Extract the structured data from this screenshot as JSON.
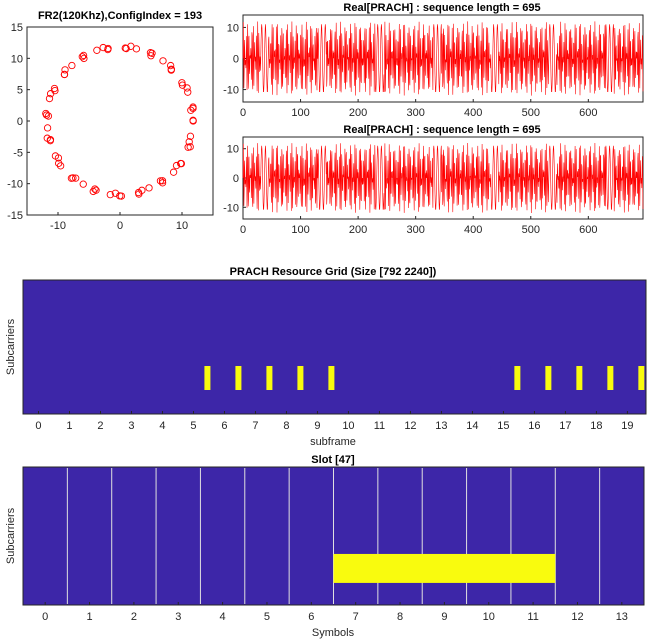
{
  "chart_data": [
    {
      "id": "constellation",
      "type": "scatter",
      "title": "FR2(120Khz),ConfigIndex = 193",
      "xlim": [
        -15,
        15
      ],
      "ylim": [
        -15,
        15
      ],
      "xticks": [
        -10,
        0,
        10
      ],
      "yticks": [
        15,
        10,
        5,
        0,
        -5,
        -10,
        -15
      ],
      "marker": "circle-open",
      "color": "#ff0000",
      "radius_estimate": 11.8,
      "point_count": 72
    },
    {
      "id": "real-prach-1",
      "type": "line",
      "title": "Real[PRACH] : sequence length = 695",
      "xlim": [
        0,
        695
      ],
      "ylim": [
        -14,
        14
      ],
      "xticks": [
        0,
        100,
        200,
        300,
        400,
        500,
        600
      ],
      "yticks": [
        10,
        0,
        -10
      ],
      "color": "#ff0000"
    },
    {
      "id": "real-prach-2",
      "type": "line",
      "title": "Real[PRACH] : sequence length = 695",
      "xlim": [
        0,
        695
      ],
      "ylim": [
        -14,
        14
      ],
      "xticks": [
        0,
        100,
        200,
        300,
        400,
        500,
        600
      ],
      "yticks": [
        10,
        0,
        -10
      ],
      "color": "#ff0000"
    },
    {
      "id": "resource-grid",
      "type": "heatmap",
      "title": "PRACH Resource Grid (Size [792 2240])",
      "xlabel": "subframe",
      "ylabel": "Subcarriers",
      "xticks": [
        0,
        1,
        2,
        3,
        4,
        5,
        6,
        7,
        8,
        9,
        10,
        11,
        12,
        13,
        14,
        15,
        16,
        17,
        18,
        19
      ],
      "xlim": [
        -0.5,
        19.6
      ],
      "background_color": "#3d26a8",
      "highlight_color": "#f9fb0e",
      "highlights": [
        5.45,
        6.45,
        7.45,
        8.45,
        9.45,
        15.45,
        16.45,
        17.45,
        18.45,
        19.45
      ]
    },
    {
      "id": "slot",
      "type": "heatmap",
      "title": "Slot [47]",
      "xlabel": "Symbols",
      "ylabel": "Subcarriers",
      "xticks": [
        0,
        1,
        2,
        3,
        4,
        5,
        6,
        7,
        8,
        9,
        10,
        11,
        12,
        13
      ],
      "xlim": [
        -0.5,
        13.5
      ],
      "background_color": "#3d26a8",
      "highlight_color": "#f9fb0e",
      "gridline_color": "#e0e0e0",
      "highlight_symbols": [
        7,
        11
      ],
      "highlight_band": [
        0.16,
        0.37
      ]
    }
  ]
}
